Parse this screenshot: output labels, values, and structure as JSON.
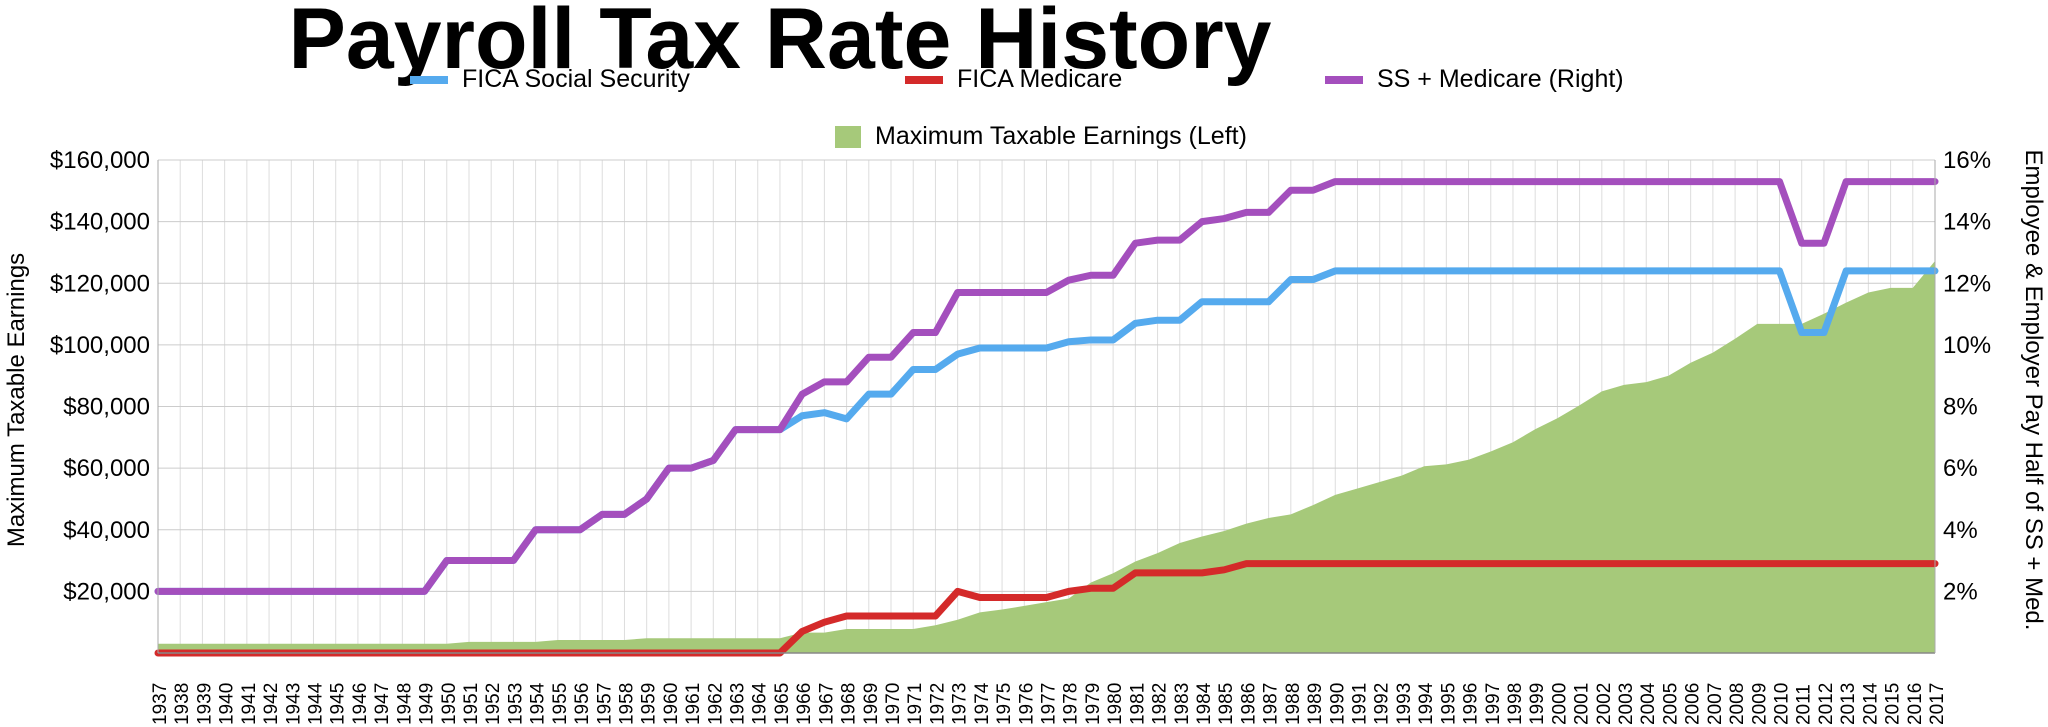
{
  "chart_data": {
    "type": "line",
    "title": "Payroll Tax Rate History",
    "ylabel_left": "Maximum Taxable Earnings",
    "ylabel_right": "Employee & Employer Pay Half of SS + Med.",
    "y_left_ticks": [
      "$20,000",
      "$40,000",
      "$60,000",
      "$80,000",
      "$100,000",
      "$120,000",
      "$140,000",
      "$160,000"
    ],
    "y_right_ticks": [
      "2%",
      "4%",
      "6%",
      "8%",
      "10%",
      "12%",
      "14%",
      "16%"
    ],
    "ylim_left": [
      0,
      160000
    ],
    "ylim_right": [
      0,
      16
    ],
    "grid": true,
    "legend_position": "top",
    "x": [
      "1937",
      "1938",
      "1939",
      "1940",
      "1941",
      "1942",
      "1943",
      "1944",
      "1945",
      "1946",
      "1947",
      "1948",
      "1949",
      "1950",
      "1951",
      "1952",
      "1953",
      "1954",
      "1955",
      "1956",
      "1957",
      "1958",
      "1959",
      "1960",
      "1961",
      "1962",
      "1963",
      "1964",
      "1965",
      "1966",
      "1967",
      "1968",
      "1969",
      "1970",
      "1971",
      "1972",
      "1973",
      "1974",
      "1975",
      "1976",
      "1977",
      "1978",
      "1979",
      "1980",
      "1981",
      "1982",
      "1983",
      "1984",
      "1985",
      "1986",
      "1987",
      "1988",
      "1989",
      "1990",
      "1991",
      "1992",
      "1993",
      "1994",
      "1995",
      "1996",
      "1997",
      "1998",
      "1999",
      "2000",
      "2001",
      "2002",
      "2003",
      "2004",
      "2005",
      "2006",
      "2007",
      "2008",
      "2009",
      "2010",
      "2011",
      "2012",
      "2013",
      "2014",
      "2015",
      "2016",
      "2017"
    ],
    "series": [
      {
        "name": "FICA Social Security",
        "axis": "right",
        "kind": "line",
        "color": "#55aaee",
        "values": [
          2,
          2,
          2,
          2,
          2,
          2,
          2,
          2,
          2,
          2,
          2,
          2,
          2,
          3,
          3,
          3,
          3,
          4,
          4,
          4,
          4.5,
          4.5,
          5,
          6,
          6,
          6.25,
          7.25,
          7.25,
          7.25,
          7.7,
          7.8,
          7.6,
          8.4,
          8.4,
          9.2,
          9.2,
          9.7,
          9.9,
          9.9,
          9.9,
          9.9,
          10.1,
          10.16,
          10.16,
          10.7,
          10.8,
          10.8,
          11.4,
          11.4,
          11.4,
          11.4,
          12.12,
          12.12,
          12.4,
          12.4,
          12.4,
          12.4,
          12.4,
          12.4,
          12.4,
          12.4,
          12.4,
          12.4,
          12.4,
          12.4,
          12.4,
          12.4,
          12.4,
          12.4,
          12.4,
          12.4,
          12.4,
          12.4,
          12.4,
          10.4,
          10.4,
          12.4,
          12.4,
          12.4,
          12.4,
          12.4
        ]
      },
      {
        "name": "FICA Medicare",
        "axis": "right",
        "kind": "line",
        "color": "#d42a2a",
        "values": [
          0,
          0,
          0,
          0,
          0,
          0,
          0,
          0,
          0,
          0,
          0,
          0,
          0,
          0,
          0,
          0,
          0,
          0,
          0,
          0,
          0,
          0,
          0,
          0,
          0,
          0,
          0,
          0,
          0,
          0.7,
          1.0,
          1.2,
          1.2,
          1.2,
          1.2,
          1.2,
          2.0,
          1.8,
          1.8,
          1.8,
          1.8,
          2.0,
          2.1,
          2.1,
          2.6,
          2.6,
          2.6,
          2.6,
          2.7,
          2.9,
          2.9,
          2.9,
          2.9,
          2.9,
          2.9,
          2.9,
          2.9,
          2.9,
          2.9,
          2.9,
          2.9,
          2.9,
          2.9,
          2.9,
          2.9,
          2.9,
          2.9,
          2.9,
          2.9,
          2.9,
          2.9,
          2.9,
          2.9,
          2.9,
          2.9,
          2.9,
          2.9,
          2.9,
          2.9,
          2.9,
          2.9
        ]
      },
      {
        "name": "SS + Medicare  (Right)",
        "axis": "right",
        "kind": "line",
        "color": "#a44fbd",
        "values": [
          2,
          2,
          2,
          2,
          2,
          2,
          2,
          2,
          2,
          2,
          2,
          2,
          2,
          3,
          3,
          3,
          3,
          4,
          4,
          4,
          4.5,
          4.5,
          5,
          6,
          6,
          6.25,
          7.25,
          7.25,
          7.25,
          8.4,
          8.8,
          8.8,
          9.6,
          9.6,
          10.4,
          10.4,
          11.7,
          11.7,
          11.7,
          11.7,
          11.7,
          12.1,
          12.26,
          12.26,
          13.3,
          13.4,
          13.4,
          14.0,
          14.1,
          14.3,
          14.3,
          15.02,
          15.02,
          15.3,
          15.3,
          15.3,
          15.3,
          15.3,
          15.3,
          15.3,
          15.3,
          15.3,
          15.3,
          15.3,
          15.3,
          15.3,
          15.3,
          15.3,
          15.3,
          15.3,
          15.3,
          15.3,
          15.3,
          15.3,
          13.3,
          13.3,
          15.3,
          15.3,
          15.3,
          15.3,
          15.3
        ]
      },
      {
        "name": "Maximum Taxable Earnings (Left)",
        "axis": "left",
        "kind": "area",
        "color": "#a6c97a",
        "values": [
          3000,
          3000,
          3000,
          3000,
          3000,
          3000,
          3000,
          3000,
          3000,
          3000,
          3000,
          3000,
          3000,
          3000,
          3600,
          3600,
          3600,
          3600,
          4200,
          4200,
          4200,
          4200,
          4800,
          4800,
          4800,
          4800,
          4800,
          4800,
          4800,
          6600,
          6600,
          7800,
          7800,
          7800,
          7800,
          9000,
          10800,
          13200,
          14100,
          15300,
          16500,
          17700,
          22900,
          25900,
          29700,
          32400,
          35700,
          37800,
          39600,
          42000,
          43800,
          45000,
          48000,
          51300,
          53400,
          55500,
          57600,
          60600,
          61200,
          62700,
          65400,
          68400,
          72600,
          76200,
          80400,
          84900,
          87000,
          87900,
          90000,
          94200,
          97500,
          102000,
          106800,
          106800,
          106800,
          110100,
          113700,
          117000,
          118500,
          118500,
          127200
        ]
      }
    ]
  }
}
